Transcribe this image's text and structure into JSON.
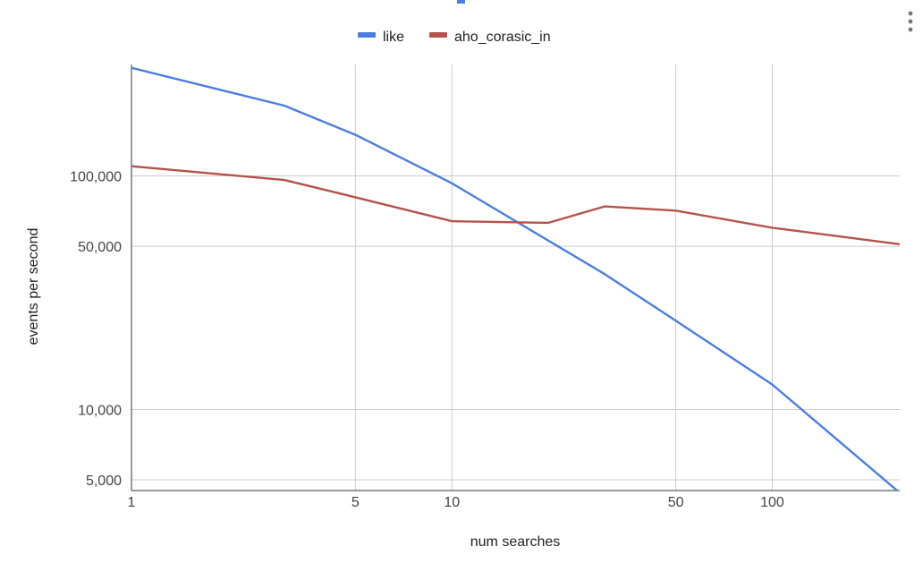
{
  "chart_data": {
    "type": "line",
    "title": "",
    "xlabel": "num searches",
    "ylabel": "events per second",
    "x_scale": "log",
    "y_scale": "log",
    "xlim": [
      1,
      250
    ],
    "ylim": [
      4500,
      300000
    ],
    "x_ticks": [
      {
        "value": 1,
        "label": "1"
      },
      {
        "value": 5,
        "label": "5"
      },
      {
        "value": 10,
        "label": "10"
      },
      {
        "value": 50,
        "label": "50"
      },
      {
        "value": 100,
        "label": "100"
      }
    ],
    "y_ticks": [
      {
        "value": 5000,
        "label": "5,000"
      },
      {
        "value": 10000,
        "label": "10,000"
      },
      {
        "value": 50000,
        "label": "50,000"
      },
      {
        "value": 100000,
        "label": "100,000"
      }
    ],
    "grid": true,
    "legend_position": "top-center",
    "series": [
      {
        "name": "like",
        "color": "#4a7ee0",
        "x": [
          1,
          3,
          5,
          10,
          30,
          50,
          100,
          250
        ],
        "y": [
          290000,
          200000,
          150000,
          93000,
          38000,
          24000,
          12800,
          4400
        ]
      },
      {
        "name": "aho_corasic_in",
        "color": "#b5524a",
        "x": [
          1,
          3,
          5,
          10,
          20,
          30,
          50,
          100,
          250
        ],
        "y": [
          110000,
          96000,
          81000,
          64000,
          63000,
          74000,
          71000,
          60000,
          51000
        ]
      }
    ]
  },
  "menu": {
    "icon": "more-vert-icon"
  }
}
